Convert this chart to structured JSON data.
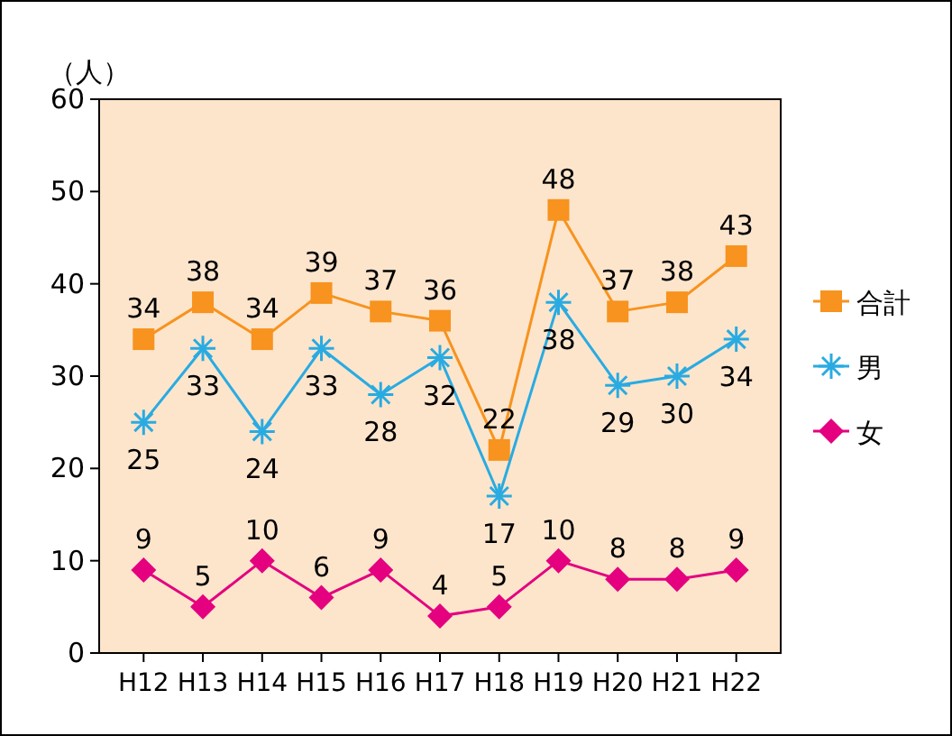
{
  "chart_data": {
    "type": "line",
    "ylabel": "（人）",
    "categories": [
      "H12",
      "H13",
      "H14",
      "H15",
      "H16",
      "H17",
      "H18",
      "H19",
      "H20",
      "H21",
      "H22"
    ],
    "series": [
      {
        "name": "合計",
        "color": "#f7931e",
        "marker": "square",
        "values": [
          34,
          38,
          34,
          39,
          37,
          36,
          22,
          48,
          37,
          38,
          43
        ]
      },
      {
        "name": "男",
        "color": "#29abe2",
        "marker": "cross",
        "values": [
          25,
          33,
          24,
          33,
          28,
          32,
          17,
          38,
          29,
          30,
          34
        ]
      },
      {
        "name": "女",
        "color": "#e4007f",
        "marker": "diamond",
        "values": [
          9,
          5,
          10,
          6,
          9,
          4,
          5,
          10,
          8,
          8,
          9
        ]
      }
    ],
    "ylim": [
      0,
      60
    ],
    "yticks": [
      0,
      10,
      20,
      30,
      40,
      50,
      60
    ],
    "grid": false,
    "legend": "right",
    "data_labels": true
  }
}
